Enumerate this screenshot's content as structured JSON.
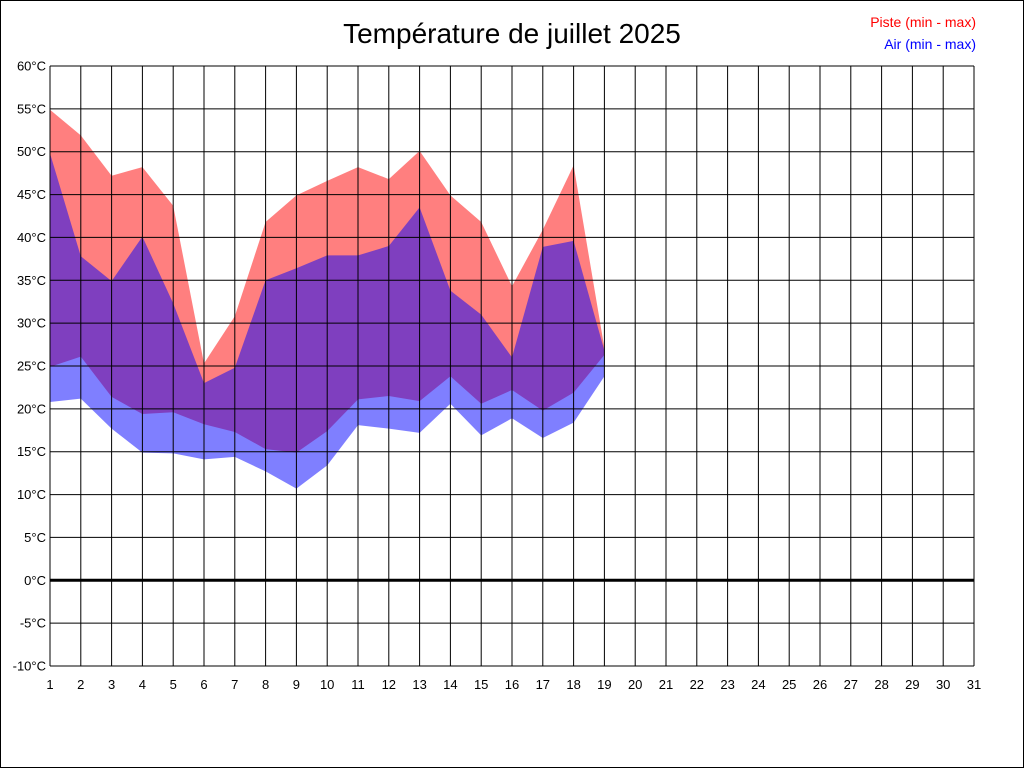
{
  "chart_data": {
    "type": "area",
    "title": "Température de juillet 2025",
    "xlabel": "",
    "ylabel": "",
    "x": [
      1,
      2,
      3,
      4,
      5,
      6,
      7,
      8,
      9,
      10,
      11,
      12,
      13,
      14,
      15,
      16,
      17,
      18,
      19,
      20,
      21,
      22,
      23,
      24,
      25,
      26,
      27,
      28,
      29,
      30,
      31
    ],
    "xlim": [
      1,
      31
    ],
    "ylim": [
      -10,
      60
    ],
    "y_ticks": [
      60,
      55,
      50,
      45,
      40,
      35,
      30,
      25,
      20,
      15,
      10,
      5,
      0,
      -5,
      -10
    ],
    "y_tick_labels": [
      "60°C",
      "55°C",
      "50°C",
      "45°C",
      "40°C",
      "35°C",
      "30°C",
      "25°C",
      "20°C",
      "15°C",
      "10°C",
      "5°C",
      "0°C",
      "-5°C",
      "-10°C"
    ],
    "x_tick_labels": [
      "1",
      "2",
      "3",
      "4",
      "5",
      "6",
      "7",
      "8",
      "9",
      "10",
      "11",
      "12",
      "13",
      "14",
      "15",
      "16",
      "17",
      "18",
      "19",
      "20",
      "21",
      "22",
      "23",
      "24",
      "25",
      "26",
      "27",
      "28",
      "29",
      "30",
      "31"
    ],
    "grid": true,
    "zero_line": true,
    "legend_position": "top-right",
    "series": [
      {
        "name": "Piste (min - max)",
        "color": "#ff0000",
        "fill": "#ff0000",
        "fill_opacity": 0.5,
        "x": [
          1,
          2,
          3,
          4,
          5,
          6,
          7,
          8,
          9,
          10,
          11,
          12,
          13,
          14,
          15,
          16,
          17,
          18,
          19
        ],
        "min": [
          24.9,
          26.1,
          21.4,
          19.4,
          19.6,
          18.2,
          17.3,
          15.3,
          14.9,
          17.4,
          21.1,
          21.5,
          20.9,
          23.8,
          20.6,
          22.2,
          19.8,
          21.9,
          26.3
        ],
        "max": [
          54.9,
          51.9,
          47.2,
          48.2,
          43.7,
          25.3,
          30.8,
          41.8,
          44.9,
          46.6,
          48.2,
          46.8,
          50.1,
          44.9,
          41.8,
          34.3,
          40.9,
          48.4,
          27.1
        ]
      },
      {
        "name": "Air (min - max)",
        "color": "#0000ff",
        "fill": "#0000ff",
        "fill_opacity": 0.5,
        "x": [
          1,
          2,
          3,
          4,
          5,
          6,
          7,
          8,
          9,
          10,
          11,
          12,
          13,
          14,
          15,
          16,
          17,
          18,
          19
        ],
        "min": [
          20.8,
          21.2,
          17.7,
          14.9,
          14.8,
          14.1,
          14.4,
          12.7,
          10.7,
          13.4,
          18.1,
          17.7,
          17.2,
          20.6,
          16.9,
          18.9,
          16.6,
          18.4,
          23.8
        ],
        "max": [
          49.8,
          37.8,
          34.9,
          40.1,
          32.3,
          23.0,
          24.8,
          35.0,
          36.4,
          37.9,
          37.9,
          39.0,
          43.5,
          33.8,
          31.0,
          26.0,
          38.9,
          39.6,
          26.8
        ]
      }
    ]
  }
}
